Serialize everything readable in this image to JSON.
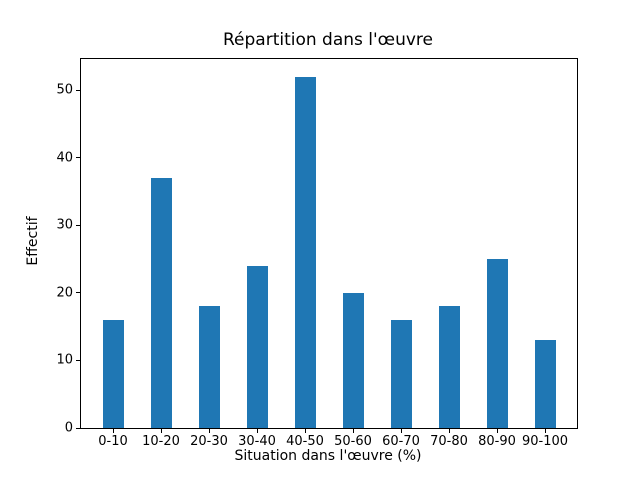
{
  "chart_data": {
    "type": "bar",
    "title": "Répartition dans l'œuvre",
    "xlabel": "Situation dans l'œuvre (%)",
    "ylabel": "Effectif",
    "categories": [
      "0-10",
      "10-20",
      "20-30",
      "30-40",
      "40-50",
      "50-60",
      "60-70",
      "70-80",
      "80-90",
      "90-100"
    ],
    "values": [
      16,
      37,
      18,
      24,
      52,
      20,
      16,
      18,
      25,
      13
    ],
    "yticks": [
      0,
      10,
      20,
      30,
      40,
      50
    ],
    "ylim": [
      0,
      54.6
    ],
    "bar_color": "#1f77b4",
    "grid": false,
    "legend": "none"
  }
}
